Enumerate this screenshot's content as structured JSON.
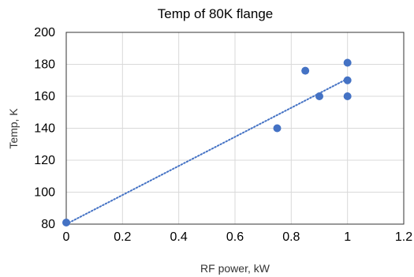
{
  "chart_data": {
    "type": "scatter",
    "title": "Temp of 80K flange",
    "xlabel": "RF power, kW",
    "ylabel": "Temp, K",
    "xlim": [
      0,
      1.2
    ],
    "ylim": [
      80,
      200
    ],
    "x_ticks": [
      "0",
      "0.2",
      "0.4",
      "0.6",
      "0.8",
      "1",
      "1.2"
    ],
    "y_ticks": [
      "80",
      "100",
      "120",
      "140",
      "160",
      "180",
      "200"
    ],
    "grid": true,
    "legend": "none",
    "series": [
      {
        "color": "#4472C4",
        "points": [
          {
            "x": 0,
            "y": 81
          },
          {
            "x": 0.75,
            "y": 140
          },
          {
            "x": 0.85,
            "y": 176
          },
          {
            "x": 0.9,
            "y": 160
          },
          {
            "x": 1.0,
            "y": 181
          },
          {
            "x": 1.0,
            "y": 170
          },
          {
            "x": 1.0,
            "y": 160
          }
        ]
      }
    ],
    "trendline": {
      "type": "linear",
      "style": "dotted",
      "color": "#4472C4",
      "from": {
        "x": 0,
        "y": 80
      },
      "to": {
        "x": 1.0,
        "y": 171
      }
    }
  }
}
